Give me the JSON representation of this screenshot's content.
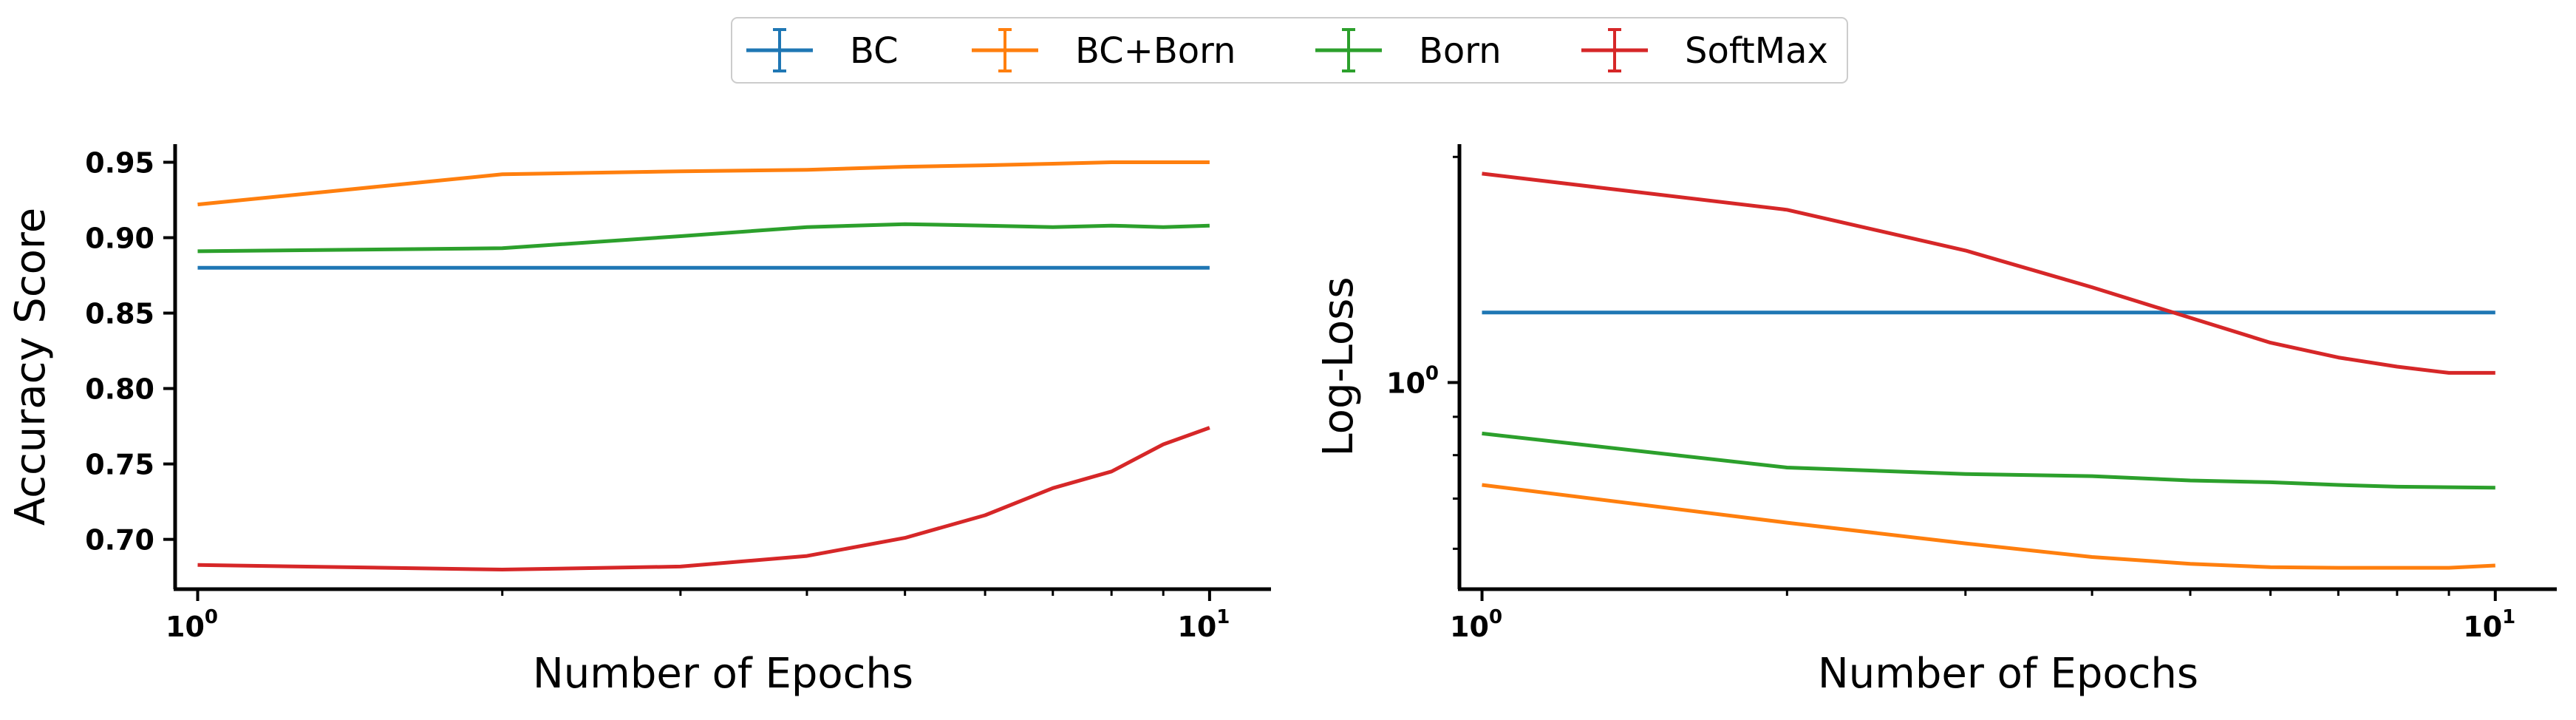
{
  "legend": {
    "placement": "top-center",
    "entries": [
      {
        "label": "BC",
        "color": "#1f77b4"
      },
      {
        "label": "BC+Born",
        "color": "#ff7f0e"
      },
      {
        "label": "Born",
        "color": "#2ca02c"
      },
      {
        "label": "SoftMax",
        "color": "#d62728"
      }
    ]
  },
  "chart_data": [
    {
      "type": "line",
      "xlabel": "Number of Epochs",
      "ylabel": "Accuracy Score",
      "xscale": "log",
      "xlim": [
        0.95,
        11.5
      ],
      "ylim": [
        0.667,
        0.962
      ],
      "x_ticks": [
        {
          "base": "10",
          "exp": "0",
          "value": 1
        },
        {
          "base": "10",
          "exp": "1",
          "value": 10
        }
      ],
      "y_ticks": [
        "0.70",
        "0.75",
        "0.80",
        "0.85",
        "0.90",
        "0.95"
      ],
      "grid": false,
      "x": [
        1,
        2,
        3,
        4,
        5,
        6,
        7,
        8,
        9,
        10
      ],
      "series": [
        {
          "name": "BC",
          "color": "#1f77b4",
          "values": [
            0.88,
            0.88,
            0.88,
            0.88,
            0.88,
            0.88,
            0.88,
            0.88,
            0.88,
            0.88
          ]
        },
        {
          "name": "BC+Born",
          "color": "#ff7f0e",
          "values": [
            0.922,
            0.942,
            0.944,
            0.945,
            0.947,
            0.948,
            0.949,
            0.95,
            0.95,
            0.95
          ]
        },
        {
          "name": "Born",
          "color": "#2ca02c",
          "values": [
            0.891,
            0.893,
            0.901,
            0.907,
            0.909,
            0.908,
            0.907,
            0.908,
            0.907,
            0.908
          ]
        },
        {
          "name": "SoftMax",
          "color": "#d62728",
          "values": [
            0.683,
            0.68,
            0.682,
            0.689,
            0.701,
            0.716,
            0.734,
            0.745,
            0.763,
            0.774
          ]
        }
      ]
    },
    {
      "type": "line",
      "xlabel": "Number of Epochs",
      "ylabel": "Log-Loss",
      "xscale": "log",
      "yscale": "log",
      "xlim": [
        0.95,
        11.5
      ],
      "ylim": [
        0.53,
        2.08
      ],
      "x_ticks": [
        {
          "base": "10",
          "exp": "0",
          "value": 1
        },
        {
          "base": "10",
          "exp": "1",
          "value": 10
        }
      ],
      "y_ticks": [
        {
          "base": "10",
          "exp": "0",
          "value": 1
        }
      ],
      "grid": false,
      "x": [
        1,
        2,
        3,
        4,
        5,
        6,
        7,
        8,
        9,
        10
      ],
      "series": [
        {
          "name": "BC",
          "color": "#1f77b4",
          "values": [
            1.24,
            1.24,
            1.24,
            1.24,
            1.24,
            1.24,
            1.24,
            1.24,
            1.24,
            1.24
          ]
        },
        {
          "name": "BC+Born",
          "color": "#ff7f0e",
          "values": [
            0.73,
            0.65,
            0.61,
            0.585,
            0.573,
            0.567,
            0.566,
            0.566,
            0.566,
            0.57
          ]
        },
        {
          "name": "Born",
          "color": "#2ca02c",
          "values": [
            0.855,
            0.77,
            0.755,
            0.75,
            0.74,
            0.736,
            0.73,
            0.726,
            0.725,
            0.724
          ]
        },
        {
          "name": "SoftMax",
          "color": "#d62728",
          "values": [
            1.9,
            1.7,
            1.5,
            1.34,
            1.22,
            1.13,
            1.08,
            1.05,
            1.03,
            1.03
          ]
        }
      ]
    }
  ]
}
